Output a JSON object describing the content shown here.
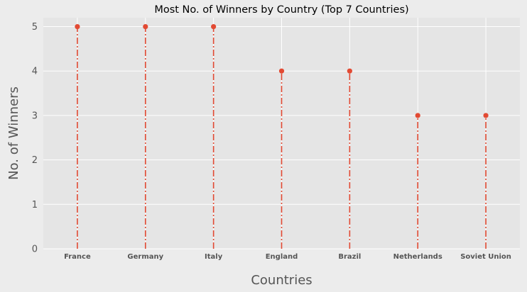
{
  "chart_data": {
    "type": "lollipop",
    "title": "Most No. of Winners by Country (Top 7 Countries)",
    "xlabel": "Countries",
    "ylabel": "No. of Winners",
    "categories": [
      "France",
      "Germany",
      "Italy",
      "England",
      "Brazil",
      "Netherlands",
      "Soviet Union"
    ],
    "values": [
      5,
      5,
      5,
      4,
      4,
      3,
      3
    ],
    "ylim": [
      0,
      5.2
    ],
    "yticks": [
      "0",
      "1",
      "2",
      "3",
      "4",
      "5"
    ],
    "grid": true,
    "stem_style": "dash-dot",
    "colors": {
      "marker": "#e24a33",
      "plot_background": "#e5e5e5",
      "figure_background": "#ececec",
      "grid": "#ffffff"
    }
  }
}
